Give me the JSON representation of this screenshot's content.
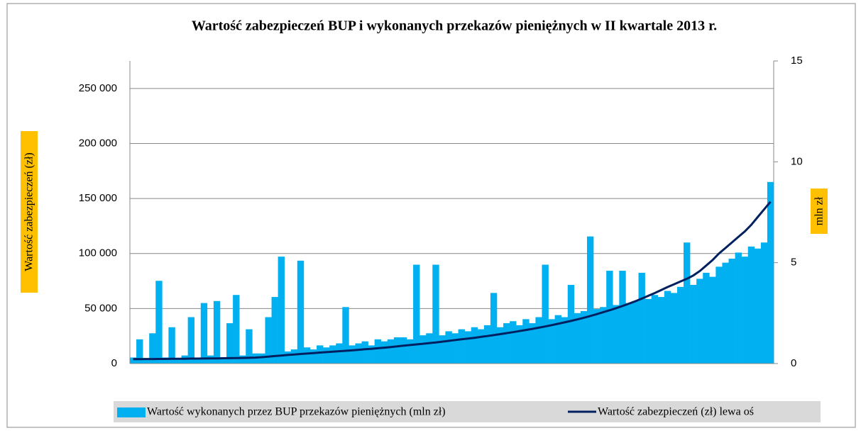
{
  "chart_data": {
    "type": "bar-line",
    "title": "Wartość zabezpieczeń BUP i wykonanych przekazów pieniężnych w II kwartale 2013 r.",
    "y_label": "Wartość zabezpieczeń (zł)",
    "y2_label": "mln zł",
    "categories": [
      null,
      null,
      null,
      null,
      null,
      null,
      null,
      null,
      null,
      null,
      null,
      null,
      null,
      null,
      null,
      null,
      null,
      null,
      null,
      null,
      null,
      null,
      null,
      null,
      null,
      null,
      null,
      null,
      null,
      null,
      null,
      null,
      null,
      null,
      null,
      null,
      null,
      null,
      null,
      null,
      null,
      null,
      null,
      null,
      null,
      null,
      null,
      null,
      null,
      null,
      null,
      null,
      null,
      null,
      null,
      null,
      null,
      null,
      null,
      null,
      null,
      null,
      null,
      null,
      null,
      null,
      null,
      null,
      null,
      null,
      null,
      null,
      null,
      null,
      null,
      null,
      null,
      null,
      null,
      null,
      null,
      null,
      null,
      null,
      null,
      null,
      null,
      null,
      null,
      null,
      null,
      null,
      null,
      null,
      null,
      null,
      null,
      null,
      null,
      null
    ],
    "series": [
      {
        "name": "Wartość wykonanych przez BUP przekazów pieniężnych  (mln zł)",
        "type": "bar",
        "axis": "y2",
        "color": "#00b0f0",
        "values": [
          0.3,
          1.2,
          0.2,
          1.5,
          4.1,
          0.3,
          1.8,
          0.2,
          0.4,
          2.3,
          0.3,
          3.0,
          0.4,
          3.1,
          0.3,
          2.0,
          3.4,
          0.4,
          1.7,
          0.5,
          0.5,
          2.3,
          3.3,
          5.3,
          0.6,
          0.7,
          5.1,
          0.8,
          0.7,
          0.9,
          0.8,
          0.9,
          1.0,
          2.8,
          0.9,
          1.0,
          1.1,
          0.9,
          1.2,
          1.1,
          1.2,
          1.3,
          1.3,
          1.2,
          4.9,
          1.4,
          1.5,
          4.9,
          1.4,
          1.6,
          1.5,
          1.7,
          1.6,
          1.8,
          1.7,
          1.9,
          3.5,
          1.8,
          2.0,
          2.1,
          1.9,
          2.2,
          2.0,
          2.3,
          4.9,
          2.2,
          2.4,
          2.3,
          3.9,
          2.5,
          2.6,
          6.3,
          2.7,
          2.8,
          4.6,
          2.9,
          4.6,
          3.0,
          3.1,
          4.5,
          3.2,
          3.4,
          3.3,
          3.6,
          3.5,
          3.8,
          6.0,
          3.9,
          4.2,
          4.5,
          4.3,
          4.8,
          5.0,
          5.2,
          5.5,
          5.3,
          5.8,
          5.7,
          6.0,
          9.0
        ]
      },
      {
        "name": "Wartość zabezpieczeń (zł) lewa oś",
        "type": "line",
        "axis": "y",
        "color": "#002060",
        "values": [
          4000,
          4000,
          4100,
          4100,
          4200,
          4200,
          4300,
          4300,
          4400,
          4500,
          4500,
          4600,
          4700,
          4700,
          4800,
          4900,
          5000,
          5100,
          5200,
          5400,
          5800,
          6300,
          6800,
          7300,
          7800,
          8200,
          8700,
          9100,
          9500,
          10000,
          10400,
          10800,
          11200,
          11600,
          12000,
          12500,
          13000,
          13400,
          13900,
          14400,
          15000,
          15600,
          16200,
          16800,
          17400,
          18000,
          18600,
          19200,
          19900,
          20600,
          21300,
          22000,
          22700,
          23400,
          24200,
          25000,
          25800,
          26700,
          27600,
          28500,
          29500,
          30500,
          31500,
          32600,
          33700,
          34900,
          36100,
          37400,
          38700,
          40100,
          41600,
          43200,
          44900,
          46600,
          48400,
          50300,
          52300,
          54400,
          56600,
          59000,
          61500,
          64000,
          66700,
          69500,
          72000,
          74500,
          77000,
          80000,
          84000,
          89000,
          94000,
          100000,
          105000,
          110000,
          115000,
          120000,
          126000,
          133000,
          140000,
          147000
        ]
      }
    ],
    "ylim": [
      0,
      275000
    ],
    "yticks": [
      0,
      {
        "value": 50000,
        "label": "50 000"
      },
      {
        "value": 100000,
        "label": "100 000"
      },
      {
        "value": 150000,
        "label": "150 000"
      },
      {
        "value": 200000,
        "label": "200 000"
      },
      {
        "value": 250000,
        "label": "250 000"
      }
    ],
    "y2lim": [
      0,
      15
    ],
    "y2ticks": [
      0,
      5,
      10,
      15
    ],
    "grid": true,
    "legend": "bottom"
  }
}
